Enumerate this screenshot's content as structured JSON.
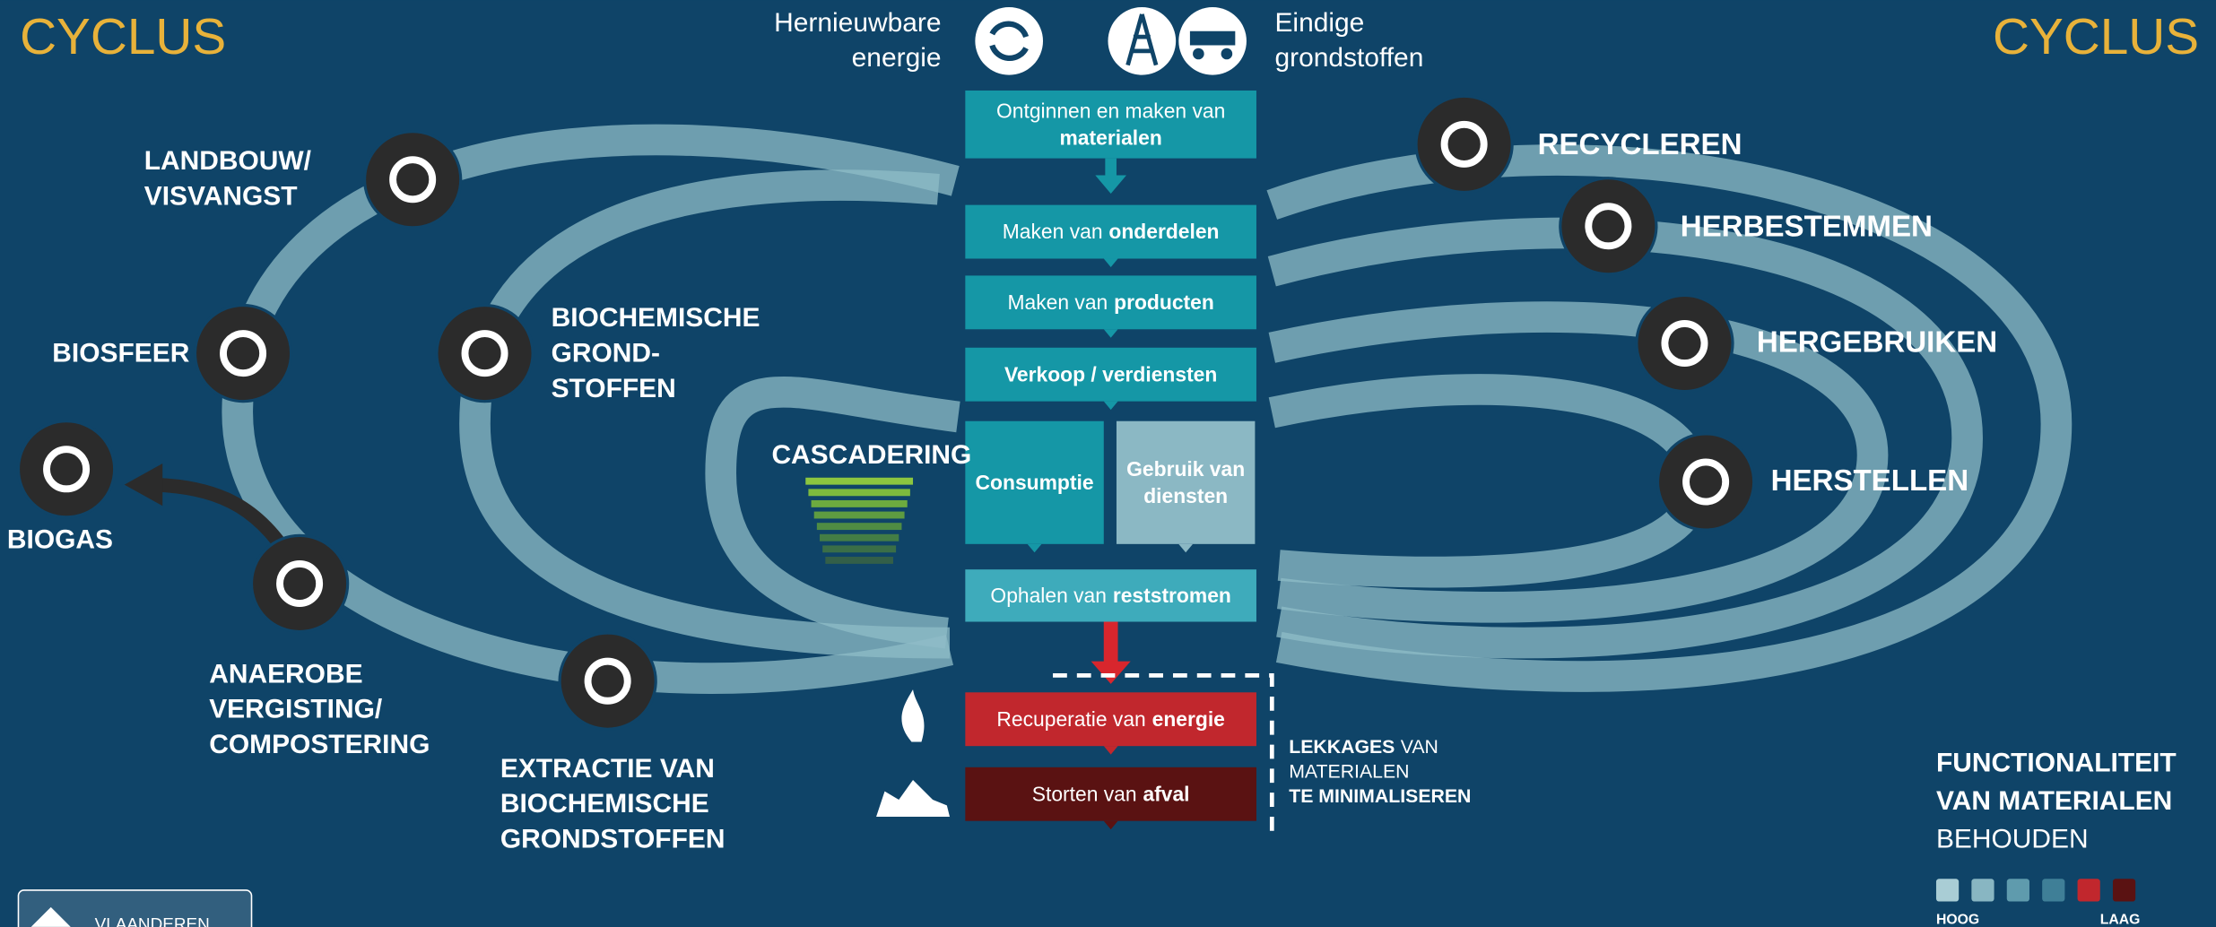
{
  "header": {
    "title_left": "CYCLUS",
    "title_right": "CYCLUS"
  },
  "sources": {
    "renewable": [
      "Hernieuwbare",
      "energie"
    ],
    "finite": [
      "Eindige",
      "grondstoffen"
    ]
  },
  "chain": {
    "mining": [
      [
        {
          "text": "Ontginnen en maken van",
          "bold": false
        }
      ],
      [
        {
          "text": "materialen",
          "bold": true
        }
      ]
    ],
    "parts": [
      [
        {
          "text": "Maken van",
          "bold": false
        },
        {
          "text": "onderdelen",
          "bold": true
        }
      ]
    ],
    "products": [
      [
        {
          "text": "Maken van",
          "bold": false
        },
        {
          "text": "producten",
          "bold": true
        }
      ]
    ],
    "sales": [
      [
        {
          "text": "Verkoop / verdiensten",
          "bold": true
        }
      ]
    ],
    "consumption": [
      [
        {
          "text": "Consumptie",
          "bold": true
        }
      ]
    ],
    "services": [
      [
        {
          "text": "Gebruik van",
          "bold": true
        }
      ],
      [
        {
          "text": "diensten",
          "bold": true
        }
      ]
    ],
    "collection": [
      [
        {
          "text": "Ophalen van",
          "bold": false
        },
        {
          "text": "reststromen",
          "bold": true
        }
      ]
    ],
    "energy_recovery": [
      [
        {
          "text": "Recuperatie van",
          "bold": false
        },
        {
          "text": "energie",
          "bold": true
        }
      ]
    ],
    "landfill": [
      [
        {
          "text": "Storten van",
          "bold": false
        },
        {
          "text": "afval",
          "bold": true
        }
      ]
    ]
  },
  "biological": {
    "agriculture": [
      "LANDBOUW/",
      "VISVANGST"
    ],
    "biosphere": "BIOSFEER",
    "biogas": "BIOGAS",
    "digestion": [
      "ANAEROBE",
      "VERGISTING/",
      "COMPOSTERING"
    ],
    "extraction": [
      "EXTRACTIE VAN",
      "BIOCHEMISCHE",
      "GRONDSTOFFEN"
    ],
    "feedstock": [
      "BIOCHEMISCHE",
      "GROND-",
      "STOFFEN"
    ],
    "cascading": "CASCADERING"
  },
  "technical": {
    "recycling": "RECYCLEREN",
    "repurposing": "HERBESTEMMEN",
    "reuse": "HERGEBRUIKEN",
    "repair": "HERSTELLEN"
  },
  "leakage": [
    [
      {
        "text": "LEKKAGES",
        "bold": true
      },
      {
        "text": "VAN",
        "bold": false
      }
    ],
    [
      {
        "text": "MATERIALEN",
        "bold": false
      }
    ],
    [
      {
        "text": "TE MINIMALISEREN",
        "bold": true
      }
    ]
  ],
  "legend": {
    "title": [
      "FUNCTIONALITEIT",
      "VAN MATERIALEN"
    ],
    "subtitle": "BEHOUDEN",
    "high": "HOOG",
    "low": "LAAG",
    "colors": [
      "#a9cdd5",
      "#88b6c2",
      "#5f9bad",
      "#3f7f97",
      "#c1272d",
      "#5a1212"
    ]
  },
  "footer": {
    "logo": "VLAANDEREN"
  }
}
